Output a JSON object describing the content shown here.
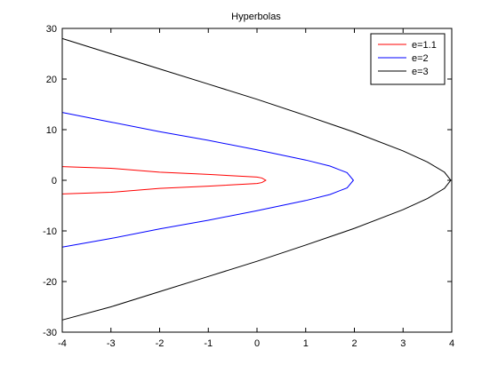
{
  "chart_data": {
    "type": "line",
    "title": "Hyperbolas",
    "xlabel": "",
    "ylabel": "",
    "xlim": [
      -4,
      4
    ],
    "ylim": [
      -30,
      30
    ],
    "xticks": [
      -4,
      -3,
      -2,
      -1,
      0,
      1,
      2,
      3,
      4
    ],
    "yticks": [
      -30,
      -20,
      -10,
      0,
      10,
      20,
      30
    ],
    "grid": false,
    "legend_position": "top-right",
    "series": [
      {
        "name": "e=1.1",
        "color": "#ff0000",
        "points": [
          [
            -4,
            2.7
          ],
          [
            -3,
            2.37
          ],
          [
            -2,
            1.6
          ],
          [
            -1,
            1.17
          ],
          [
            0,
            0.63
          ],
          [
            0.1,
            0.45
          ],
          [
            0.18,
            0
          ],
          [
            0.1,
            -0.45
          ],
          [
            0,
            -0.63
          ],
          [
            -1,
            -1.17
          ],
          [
            -2,
            -1.6
          ],
          [
            -3,
            -2.37
          ],
          [
            -4,
            -2.7
          ]
        ]
      },
      {
        "name": "e=2",
        "color": "#0000ff",
        "points": [
          [
            -4,
            13.4
          ],
          [
            -3,
            11.5
          ],
          [
            -2,
            9.6
          ],
          [
            -1,
            7.9
          ],
          [
            0,
            6.0
          ],
          [
            1,
            4.0
          ],
          [
            1.5,
            2.8
          ],
          [
            1.85,
            1.5
          ],
          [
            1.98,
            0
          ],
          [
            1.85,
            -1.5
          ],
          [
            1.5,
            -2.8
          ],
          [
            1,
            -4.0
          ],
          [
            0,
            -6.0
          ],
          [
            -1,
            -7.9
          ],
          [
            -2,
            -9.6
          ],
          [
            -3,
            -11.5
          ],
          [
            -4,
            -13.2
          ]
        ]
      },
      {
        "name": "e=3",
        "color": "#000000",
        "points": [
          [
            -4,
            28.0
          ],
          [
            -3,
            25.0
          ],
          [
            -2,
            22.0
          ],
          [
            -1,
            19.0
          ],
          [
            0,
            16.0
          ],
          [
            1,
            12.8
          ],
          [
            2,
            9.5
          ],
          [
            3,
            5.8
          ],
          [
            3.5,
            3.6
          ],
          [
            3.85,
            1.6
          ],
          [
            3.98,
            0
          ],
          [
            3.85,
            -1.6
          ],
          [
            3.5,
            -3.6
          ],
          [
            3,
            -5.8
          ],
          [
            2,
            -9.5
          ],
          [
            1,
            -12.8
          ],
          [
            0,
            -16.0
          ],
          [
            -1,
            -19.0
          ],
          [
            -2,
            -22.0
          ],
          [
            -3,
            -25.0
          ],
          [
            -4,
            -27.6
          ]
        ]
      }
    ]
  }
}
